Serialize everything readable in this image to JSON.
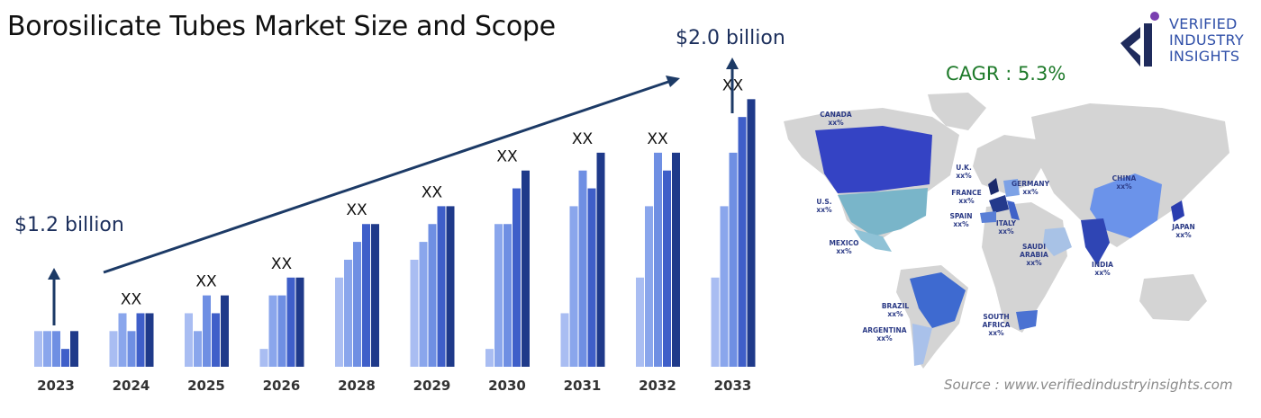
{
  "header": {
    "title": "Borosilicate Tubes Market Size and Scope"
  },
  "annotations": {
    "start_value": "$1.2 billion",
    "end_value": "$2.0 billion",
    "cagr": "CAGR : 5.3%",
    "source": "Source : www.verifiedindustryinsights.com"
  },
  "logo": {
    "line1": "VERIFIED",
    "line2": "INDUSTRY",
    "line3": "INSIGHTS"
  },
  "colors": {
    "series": [
      "#a9bdf2",
      "#6f8fe3",
      "#3f5fc9",
      "#1f3a8a"
    ],
    "arrow": "#1c3a66",
    "map_land": "#d4d4d4"
  },
  "chart_data": {
    "type": "bar",
    "categories": [
      "2023",
      "2024",
      "2025",
      "2026",
      "2028",
      "2029",
      "2030",
      "2031",
      "2032",
      "2033"
    ],
    "value_labels": [
      "",
      "XX",
      "XX",
      "XX",
      "XX",
      "XX",
      "XX",
      "XX",
      "XX",
      "XX"
    ],
    "series": [
      {
        "values": [
          2,
          2,
          3,
          1,
          5,
          6,
          1,
          3,
          5,
          5
        ]
      },
      {
        "values": [
          2,
          3,
          2,
          4,
          6,
          7,
          8,
          9,
          9,
          9
        ]
      },
      {
        "values": [
          2,
          2,
          4,
          4,
          7,
          8,
          8,
          11,
          12,
          12
        ]
      },
      {
        "values": [
          1,
          3,
          3,
          5,
          8,
          9,
          10,
          10,
          11,
          14
        ]
      },
      {
        "values": [
          2,
          3,
          4,
          5,
          8,
          9,
          11,
          12,
          12,
          15
        ]
      }
    ],
    "ylim": [
      0,
      16
    ]
  },
  "map": {
    "regions": [
      {
        "name": "CANADA",
        "value": "xx%",
        "color": "#3443c4"
      },
      {
        "name": "U.S.",
        "value": "xx%",
        "color": "#79b5c9"
      },
      {
        "name": "MEXICO",
        "value": "xx%",
        "color": "#8fc2d6"
      },
      {
        "name": "U.K.",
        "value": "xx%",
        "color": "#1b2a6b"
      },
      {
        "name": "FRANCE",
        "value": "xx%",
        "color": "#243a8c"
      },
      {
        "name": "GERMANY",
        "value": "xx%",
        "color": "#7da2e6"
      },
      {
        "name": "SPAIN",
        "value": "xx%",
        "color": "#5a7fd6"
      },
      {
        "name": "ITALY",
        "value": "xx%",
        "color": "#3f62c8"
      },
      {
        "name": "SAUDI ARABIA",
        "value": "xx%",
        "color": "#a8c2e6"
      },
      {
        "name": "CHINA",
        "value": "xx%",
        "color": "#6b93ea"
      },
      {
        "name": "INDIA",
        "value": "xx%",
        "color": "#2f45b4"
      },
      {
        "name": "JAPAN",
        "value": "xx%",
        "color": "#2a3db0"
      },
      {
        "name": "BRAZIL",
        "value": "xx%",
        "color": "#3e6ad0"
      },
      {
        "name": "ARGENTINA",
        "value": "xx%",
        "color": "#a9c1ea"
      },
      {
        "name": "SOUTH AFRICA",
        "value": "xx%",
        "color": "#4b72d2"
      }
    ]
  }
}
